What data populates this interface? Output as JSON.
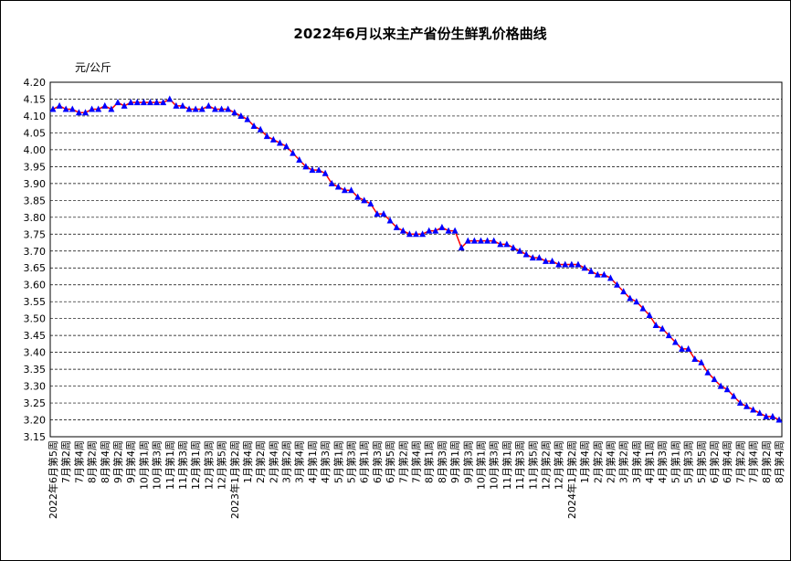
{
  "chart_data": {
    "type": "line",
    "title": "2022年6月以来主产省份生鲜乳价格曲线",
    "y_label": "元/公斤",
    "categories": [
      "2022年6月第5周",
      null,
      "7月第2周",
      null,
      "7月第4周",
      null,
      "8月第2周",
      null,
      "8月第4周",
      null,
      "9月第2周",
      null,
      "9月第4周",
      null,
      "10月第1周",
      null,
      "10月第3周",
      null,
      "11月第1周",
      null,
      "11月第3周",
      null,
      "12月第1周",
      null,
      "12月第3周",
      null,
      "12月第5周",
      null,
      "2023年1月第2周",
      null,
      "1月第4周",
      null,
      "2月第2周",
      null,
      "2月第4周",
      null,
      "3月第2周",
      null,
      "3月第4周",
      null,
      "4月第1周",
      null,
      "4月第3周",
      null,
      "5月第1周",
      null,
      "5月第3周",
      null,
      "6月第1周",
      null,
      "6月第3周",
      null,
      "6月第5周",
      null,
      "7月第2周",
      null,
      "7月第4周",
      null,
      "8月第1周",
      null,
      "8月第3周",
      null,
      "9月第1周",
      null,
      "9月第3周",
      null,
      "10月第1周",
      null,
      "10月第3周",
      null,
      "11月第1周",
      null,
      "11月第3周",
      null,
      "11月第5周",
      null,
      "12月第2周",
      null,
      "12月第4周",
      null,
      "2024年1月第2周",
      null,
      "1月第4周",
      null,
      "2月第2周",
      null,
      "2月第4周",
      null,
      "3月第2周",
      null,
      "3月第4周",
      null,
      "4月第1周",
      null,
      "4月第3周",
      null,
      "5月第1周",
      null,
      "5月第3周",
      null,
      "5月第5周",
      null,
      "6月第2周",
      null,
      "6月第4周",
      null,
      "7月第2周",
      null,
      "7月第4周",
      null,
      "8月第2周",
      null,
      "8月第4周"
    ],
    "values": [
      4.12,
      4.13,
      4.12,
      4.12,
      4.11,
      4.11,
      4.12,
      4.12,
      4.13,
      4.12,
      4.14,
      4.13,
      4.14,
      4.14,
      4.14,
      4.14,
      4.14,
      4.14,
      4.15,
      4.13,
      4.13,
      4.12,
      4.12,
      4.12,
      4.13,
      4.12,
      4.12,
      4.12,
      4.11,
      4.1,
      4.09,
      4.07,
      4.06,
      4.04,
      4.03,
      4.02,
      4.01,
      3.99,
      3.97,
      3.95,
      3.94,
      3.94,
      3.93,
      3.9,
      3.89,
      3.88,
      3.88,
      3.86,
      3.85,
      3.84,
      3.81,
      3.81,
      3.79,
      3.77,
      3.76,
      3.75,
      3.75,
      3.75,
      3.76,
      3.76,
      3.77,
      3.76,
      3.76,
      3.71,
      3.73,
      3.73,
      3.73,
      3.73,
      3.73,
      3.72,
      3.72,
      3.71,
      3.7,
      3.69,
      3.68,
      3.68,
      3.67,
      3.67,
      3.66,
      3.66,
      3.66,
      3.66,
      3.65,
      3.64,
      3.63,
      3.63,
      3.62,
      3.6,
      3.58,
      3.56,
      3.55,
      3.53,
      3.51,
      3.48,
      3.47,
      3.45,
      3.43,
      3.41,
      3.41,
      3.38,
      3.37,
      3.34,
      3.32,
      3.3,
      3.29,
      3.27,
      3.25,
      3.24,
      3.23,
      3.22,
      3.21,
      3.21,
      3.2
    ],
    "color": "#ff0000",
    "marker_color": "#0000ff",
    "ylim": [
      3.15,
      4.2
    ],
    "yticks": [
      {
        "value": 3.15,
        "label": "3.15"
      },
      {
        "value": 3.2,
        "label": "3.20"
      },
      {
        "value": 3.25,
        "label": "3.25"
      },
      {
        "value": 3.3,
        "label": "3.30"
      },
      {
        "value": 3.35,
        "label": "3.35"
      },
      {
        "value": 3.4,
        "label": "3.40"
      },
      {
        "value": 3.45,
        "label": "3.45"
      },
      {
        "value": 3.5,
        "label": "3.50"
      },
      {
        "value": 3.55,
        "label": "3.55"
      },
      {
        "value": 3.6,
        "label": "3.60"
      },
      {
        "value": 3.65,
        "label": "3.65"
      },
      {
        "value": 3.7,
        "label": "3.70"
      },
      {
        "value": 3.75,
        "label": "3.75"
      },
      {
        "value": 3.8,
        "label": "3.80"
      },
      {
        "value": 3.85,
        "label": "3.85"
      },
      {
        "value": 3.9,
        "label": "3.90"
      },
      {
        "value": 3.95,
        "label": "3.95"
      },
      {
        "value": 4.0,
        "label": "4.00"
      },
      {
        "value": 4.05,
        "label": "4.05"
      },
      {
        "value": 4.1,
        "label": "4.10"
      },
      {
        "value": 4.15,
        "label": "4.15"
      },
      {
        "value": 4.2,
        "label": "4.20"
      }
    ],
    "grid": true
  }
}
